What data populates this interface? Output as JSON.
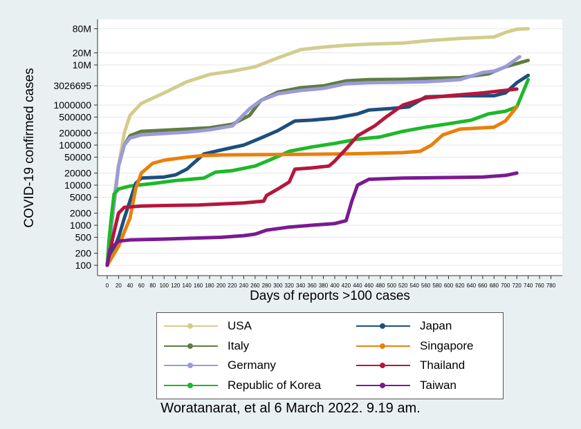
{
  "chart_data": {
    "type": "line",
    "xlabel": "Days of reports >100 cases",
    "ylabel": "COVID-19 confirmed cases",
    "y_scale": "log",
    "grid": true,
    "legend_position": "bottom",
    "x_ticks": [
      0,
      20,
      40,
      60,
      80,
      100,
      120,
      140,
      160,
      180,
      200,
      220,
      240,
      260,
      280,
      300,
      320,
      340,
      360,
      380,
      400,
      420,
      440,
      460,
      480,
      500,
      520,
      540,
      560,
      580,
      600,
      620,
      640,
      660,
      680,
      700,
      720,
      740,
      760,
      780
    ],
    "y_ticks": [
      {
        "value": 100,
        "label": "100"
      },
      {
        "value": 200,
        "label": "200"
      },
      {
        "value": 500,
        "label": "500"
      },
      {
        "value": 1000,
        "label": "1000"
      },
      {
        "value": 2000,
        "label": "2000"
      },
      {
        "value": 5000,
        "label": "5000"
      },
      {
        "value": 10000,
        "label": "10000"
      },
      {
        "value": 20000,
        "label": "20000"
      },
      {
        "value": 50000,
        "label": "50000"
      },
      {
        "value": 100000,
        "label": "100000"
      },
      {
        "value": 200000,
        "label": "200000"
      },
      {
        "value": 500000,
        "label": "500000"
      },
      {
        "value": 1000000,
        "label": "1000000"
      },
      {
        "value": 3026695,
        "label": "3026695"
      },
      {
        "value": 10000000,
        "label": "10M"
      },
      {
        "value": 20000000,
        "label": "20M"
      },
      {
        "value": 80000000,
        "label": "80M"
      }
    ],
    "series": [
      {
        "name": "USA",
        "color": "#d4cc8e",
        "points": [
          [
            0,
            100
          ],
          [
            10,
            3000
          ],
          [
            20,
            30000
          ],
          [
            30,
            200000
          ],
          [
            40,
            550000
          ],
          [
            60,
            1100000
          ],
          [
            100,
            2000000
          ],
          [
            140,
            3800000
          ],
          [
            180,
            5800000
          ],
          [
            220,
            7000000
          ],
          [
            260,
            9000000
          ],
          [
            300,
            15000000
          ],
          [
            340,
            24000000
          ],
          [
            380,
            28000000
          ],
          [
            420,
            31000000
          ],
          [
            460,
            33000000
          ],
          [
            520,
            35000000
          ],
          [
            560,
            40000000
          ],
          [
            620,
            46000000
          ],
          [
            680,
            50000000
          ],
          [
            700,
            65000000
          ],
          [
            720,
            78000000
          ],
          [
            740,
            80000000
          ]
        ]
      },
      {
        "name": "Italy",
        "color": "#5e7d41",
        "points": [
          [
            0,
            100
          ],
          [
            10,
            2000
          ],
          [
            20,
            30000
          ],
          [
            30,
            100000
          ],
          [
            40,
            170000
          ],
          [
            60,
            220000
          ],
          [
            100,
            235000
          ],
          [
            140,
            250000
          ],
          [
            180,
            270000
          ],
          [
            220,
            330000
          ],
          [
            250,
            550000
          ],
          [
            270,
            1300000
          ],
          [
            300,
            2100000
          ],
          [
            340,
            2700000
          ],
          [
            380,
            3000000
          ],
          [
            420,
            4000000
          ],
          [
            460,
            4300000
          ],
          [
            520,
            4400000
          ],
          [
            560,
            4600000
          ],
          [
            620,
            4800000
          ],
          [
            670,
            6000000
          ],
          [
            700,
            9000000
          ],
          [
            740,
            13000000
          ]
        ]
      },
      {
        "name": "Germany",
        "color": "#9c9ad8",
        "points": [
          [
            0,
            100
          ],
          [
            10,
            2000
          ],
          [
            20,
            30000
          ],
          [
            30,
            100000
          ],
          [
            40,
            150000
          ],
          [
            60,
            180000
          ],
          [
            100,
            195000
          ],
          [
            140,
            210000
          ],
          [
            180,
            240000
          ],
          [
            220,
            300000
          ],
          [
            250,
            800000
          ],
          [
            270,
            1300000
          ],
          [
            300,
            1900000
          ],
          [
            340,
            2300000
          ],
          [
            380,
            2600000
          ],
          [
            420,
            3400000
          ],
          [
            460,
            3600000
          ],
          [
            520,
            3700000
          ],
          [
            560,
            3800000
          ],
          [
            620,
            4300000
          ],
          [
            660,
            6500000
          ],
          [
            680,
            7000000
          ],
          [
            700,
            9000000
          ],
          [
            725,
            16000000
          ]
        ]
      },
      {
        "name": "Republic of Korea",
        "color": "#1eb829",
        "points": [
          [
            0,
            100
          ],
          [
            3,
            400
          ],
          [
            7,
            1500
          ],
          [
            12,
            6000
          ],
          [
            20,
            8000
          ],
          [
            40,
            9500
          ],
          [
            80,
            11000
          ],
          [
            120,
            13000
          ],
          [
            170,
            15000
          ],
          [
            190,
            21000
          ],
          [
            220,
            23000
          ],
          [
            260,
            30000
          ],
          [
            290,
            45000
          ],
          [
            320,
            70000
          ],
          [
            360,
            90000
          ],
          [
            400,
            110000
          ],
          [
            440,
            140000
          ],
          [
            480,
            160000
          ],
          [
            520,
            220000
          ],
          [
            560,
            280000
          ],
          [
            600,
            340000
          ],
          [
            640,
            420000
          ],
          [
            670,
            600000
          ],
          [
            700,
            700000
          ],
          [
            720,
            900000
          ],
          [
            740,
            4300000
          ]
        ]
      },
      {
        "name": "Japan",
        "color": "#1c4f7d",
        "points": [
          [
            0,
            100
          ],
          [
            20,
            500
          ],
          [
            30,
            1500
          ],
          [
            40,
            4000
          ],
          [
            50,
            11000
          ],
          [
            60,
            15000
          ],
          [
            100,
            16000
          ],
          [
            120,
            18000
          ],
          [
            140,
            25000
          ],
          [
            170,
            60000
          ],
          [
            200,
            75000
          ],
          [
            240,
            100000
          ],
          [
            270,
            150000
          ],
          [
            300,
            230000
          ],
          [
            330,
            400000
          ],
          [
            360,
            420000
          ],
          [
            400,
            470000
          ],
          [
            440,
            600000
          ],
          [
            460,
            750000
          ],
          [
            500,
            820000
          ],
          [
            530,
            900000
          ],
          [
            560,
            1600000
          ],
          [
            620,
            1700000
          ],
          [
            680,
            1700000
          ],
          [
            700,
            2000000
          ],
          [
            720,
            3600000
          ],
          [
            740,
            5500000
          ]
        ]
      },
      {
        "name": "Singapore",
        "color": "#e9800c",
        "points": [
          [
            0,
            100
          ],
          [
            20,
            300
          ],
          [
            40,
            1500
          ],
          [
            50,
            8000
          ],
          [
            60,
            20000
          ],
          [
            80,
            35000
          ],
          [
            100,
            42000
          ],
          [
            140,
            50000
          ],
          [
            170,
            55000
          ],
          [
            200,
            57000
          ],
          [
            280,
            58000
          ],
          [
            360,
            59000
          ],
          [
            440,
            61000
          ],
          [
            520,
            65000
          ],
          [
            550,
            70000
          ],
          [
            570,
            100000
          ],
          [
            590,
            180000
          ],
          [
            620,
            250000
          ],
          [
            680,
            280000
          ],
          [
            700,
            400000
          ],
          [
            720,
            900000
          ]
        ]
      },
      {
        "name": "Thailand",
        "color": "#b5173b",
        "points": [
          [
            0,
            100
          ],
          [
            10,
            500
          ],
          [
            20,
            2000
          ],
          [
            30,
            2800
          ],
          [
            60,
            3000
          ],
          [
            100,
            3100
          ],
          [
            160,
            3200
          ],
          [
            200,
            3400
          ],
          [
            240,
            3600
          ],
          [
            275,
            4000
          ],
          [
            280,
            5500
          ],
          [
            300,
            8000
          ],
          [
            320,
            12000
          ],
          [
            330,
            25000
          ],
          [
            360,
            27000
          ],
          [
            390,
            30000
          ],
          [
            400,
            40000
          ],
          [
            420,
            80000
          ],
          [
            440,
            170000
          ],
          [
            470,
            300000
          ],
          [
            490,
            500000
          ],
          [
            520,
            1000000
          ],
          [
            560,
            1500000
          ],
          [
            600,
            1700000
          ],
          [
            660,
            2000000
          ],
          [
            720,
            2500000
          ]
        ]
      },
      {
        "name": "Taiwan",
        "color": "#7a1a91",
        "points": [
          [
            0,
            100
          ],
          [
            5,
            250
          ],
          [
            20,
            400
          ],
          [
            40,
            430
          ],
          [
            100,
            450
          ],
          [
            160,
            480
          ],
          [
            200,
            500
          ],
          [
            240,
            550
          ],
          [
            260,
            600
          ],
          [
            280,
            750
          ],
          [
            320,
            900
          ],
          [
            360,
            1000
          ],
          [
            400,
            1100
          ],
          [
            420,
            1300
          ],
          [
            430,
            4000
          ],
          [
            440,
            10000
          ],
          [
            460,
            14000
          ],
          [
            520,
            15000
          ],
          [
            600,
            15500
          ],
          [
            660,
            16000
          ],
          [
            700,
            17500
          ],
          [
            720,
            20000
          ]
        ]
      }
    ],
    "legend": {
      "columns": [
        [
          "USA",
          "Italy",
          "Germany",
          "Republic of Korea"
        ],
        [
          "Japan",
          "Singapore",
          "Thailand",
          "Taiwan"
        ]
      ]
    }
  },
  "credit": "Woratanarat, et al 6 March 2022. 9.19 am."
}
